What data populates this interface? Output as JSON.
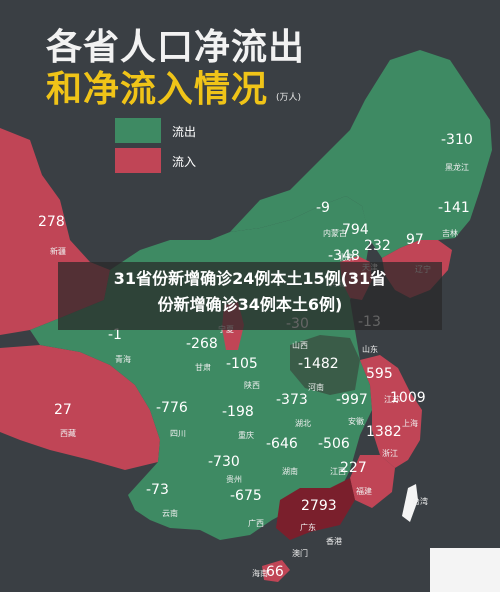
{
  "title": {
    "line1": "各省人口净流出",
    "line2": "和净流入情况",
    "unit": "(万人)"
  },
  "legend": [
    {
      "label": "流出",
      "color": "#3e8a63"
    },
    {
      "label": "流入",
      "color": "#c04556"
    }
  ],
  "headline": {
    "line1": "31省份新增确诊24例本土15例(31省",
    "line2": "份新增确诊34例本土6例)"
  },
  "colors": {
    "background": "#3a3f44",
    "outflow": "#3e8a63",
    "inflow": "#c04556",
    "inflow_dark": "#7a1f2c",
    "outflow_dark": "#3a5c48"
  },
  "provinces": [
    {
      "name": "黑龙江",
      "value": "-310"
    },
    {
      "name": "吉林",
      "value": "-141"
    },
    {
      "name": "辽宁",
      "value": "97"
    },
    {
      "name": "内蒙古",
      "value": "-9"
    },
    {
      "name": "北京",
      "value": "794"
    },
    {
      "name": "天津",
      "value": "232"
    },
    {
      "name": "河北",
      "value": "-348"
    },
    {
      "name": "山西",
      "value": "-30"
    },
    {
      "name": "山东",
      "value": "-13"
    },
    {
      "name": "新疆",
      "value": "278"
    },
    {
      "name": "西藏",
      "value": "27"
    },
    {
      "name": "青海",
      "value": "-1"
    },
    {
      "name": "甘肃",
      "value": "-268"
    },
    {
      "name": "宁夏",
      "value": ""
    },
    {
      "name": "陕西",
      "value": "-105"
    },
    {
      "name": "河南",
      "value": "-1482"
    },
    {
      "name": "江苏",
      "value": "595"
    },
    {
      "name": "上海",
      "value": "1009"
    },
    {
      "name": "安徽",
      "value": "-997"
    },
    {
      "name": "湖北",
      "value": "-373"
    },
    {
      "name": "四川",
      "value": "-776"
    },
    {
      "name": "重庆",
      "value": "-198"
    },
    {
      "name": "浙江",
      "value": "1382"
    },
    {
      "name": "湖南",
      "value": "-646"
    },
    {
      "name": "江西",
      "value": "-506"
    },
    {
      "name": "贵州",
      "value": "-730"
    },
    {
      "name": "福建",
      "value": "227"
    },
    {
      "name": "云南",
      "value": "-73"
    },
    {
      "name": "广西",
      "value": "-675"
    },
    {
      "name": "广东",
      "value": "2793"
    },
    {
      "name": "台湾",
      "value": ""
    },
    {
      "name": "香港",
      "value": ""
    },
    {
      "name": "澳门",
      "value": ""
    },
    {
      "name": "海南",
      "value": "66"
    }
  ]
}
